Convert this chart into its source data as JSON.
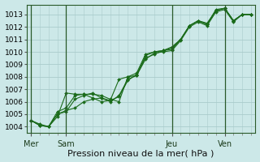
{
  "background_color": "#cce8e8",
  "grid_color": "#aacccc",
  "line_color": "#1a6b1a",
  "marker_color": "#1a6b1a",
  "xlabel": "Pression niveau de la mer( hPa )",
  "ylim": [
    1003.5,
    1013.8
  ],
  "yticks": [
    1004,
    1005,
    1006,
    1007,
    1008,
    1009,
    1010,
    1011,
    1012,
    1013
  ],
  "day_labels": [
    "Mer",
    "Sam",
    "Jeu",
    "Ven"
  ],
  "day_positions": [
    0,
    4,
    16,
    22
  ],
  "n_points": 26,
  "series": [
    [
      1004.5,
      1004.1,
      1004.0,
      1004.8,
      1006.7,
      1006.6,
      1006.6,
      1006.3,
      1006.0,
      1006.1,
      1007.8,
      1008.0,
      1008.1,
      1009.7,
      1010.0,
      1010.1,
      1010.4,
      1011.0,
      1012.1,
      1012.5,
      1012.2,
      1013.3,
      1013.5,
      1012.5,
      1013.0,
      1013.0
    ],
    [
      1004.5,
      1004.1,
      1004.0,
      1005.0,
      1005.2,
      1006.2,
      1006.5,
      1006.7,
      1006.3,
      1006.1,
      1006.4,
      1007.7,
      1008.2,
      1009.5,
      1009.8,
      1010.1,
      1010.2,
      1011.0,
      1012.1,
      1012.5,
      1012.3,
      1013.3,
      1013.5,
      1012.5,
      1013.0,
      1013.0
    ],
    [
      1004.5,
      1004.1,
      1004.0,
      1005.2,
      1005.5,
      1006.5,
      1006.6,
      1006.6,
      1006.5,
      1006.2,
      1006.0,
      1008.0,
      1008.3,
      1009.8,
      1010.0,
      1010.1,
      1010.3,
      1011.0,
      1012.1,
      1012.5,
      1012.2,
      1013.4,
      1013.5,
      1012.5,
      1013.0,
      1013.0
    ],
    [
      1004.5,
      1004.2,
      1004.0,
      1005.0,
      1005.3,
      1005.5,
      1006.0,
      1006.2,
      1006.3,
      1006.0,
      1006.5,
      1007.8,
      1008.1,
      1009.4,
      1009.9,
      1010.0,
      1010.1,
      1010.9,
      1012.0,
      1012.4,
      1012.1,
      1013.2,
      1013.4,
      1012.4,
      1013.0,
      1013.0
    ]
  ]
}
